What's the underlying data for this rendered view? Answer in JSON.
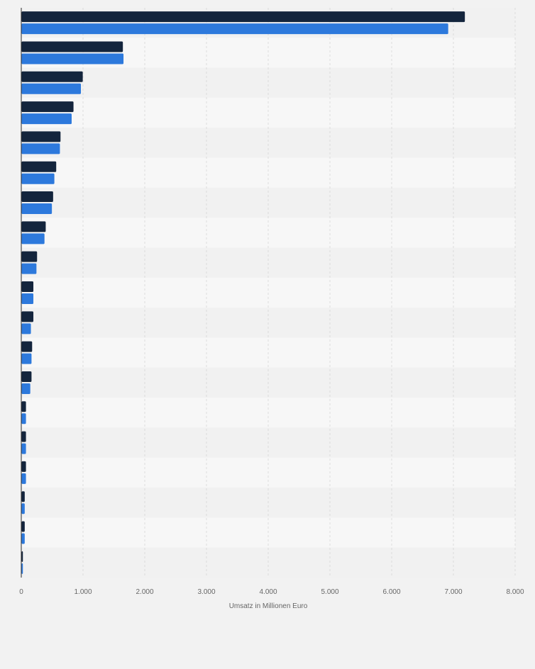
{
  "chart_data": {
    "type": "bar",
    "orientation": "horizontal",
    "categories": [
      "",
      "",
      "",
      "",
      "",
      "",
      "",
      "",
      "",
      "",
      "",
      "",
      "",
      "",
      "",
      "",
      "",
      "",
      ""
    ],
    "series": [
      {
        "color": "#14253d",
        "values": [
          7180,
          1640,
          990,
          840,
          630,
          560,
          510,
          390,
          250,
          190,
          190,
          170,
          160,
          70,
          70,
          70,
          50,
          50,
          20
        ]
      },
      {
        "color": "#2d79dc",
        "values": [
          6910,
          1650,
          960,
          810,
          620,
          530,
          490,
          370,
          240,
          190,
          150,
          160,
          140,
          70,
          70,
          70,
          50,
          50,
          20
        ]
      }
    ],
    "xlim": [
      0,
      8000
    ],
    "x_ticks": [
      0,
      1000,
      2000,
      3000,
      4000,
      5000,
      6000,
      7000,
      8000
    ],
    "x_tick_labels": [
      "0",
      "1.000",
      "2.000",
      "3.000",
      "4.000",
      "5.000",
      "6.000",
      "7.000",
      "8.000"
    ],
    "xlabel": "Umsatz in Millionen Euro",
    "grid": true,
    "colors": {
      "background": "#f2f2f2",
      "band_light": "#f7f7f7",
      "band_dark": "#f1f1f1",
      "grid": "#dcdcdc"
    }
  }
}
